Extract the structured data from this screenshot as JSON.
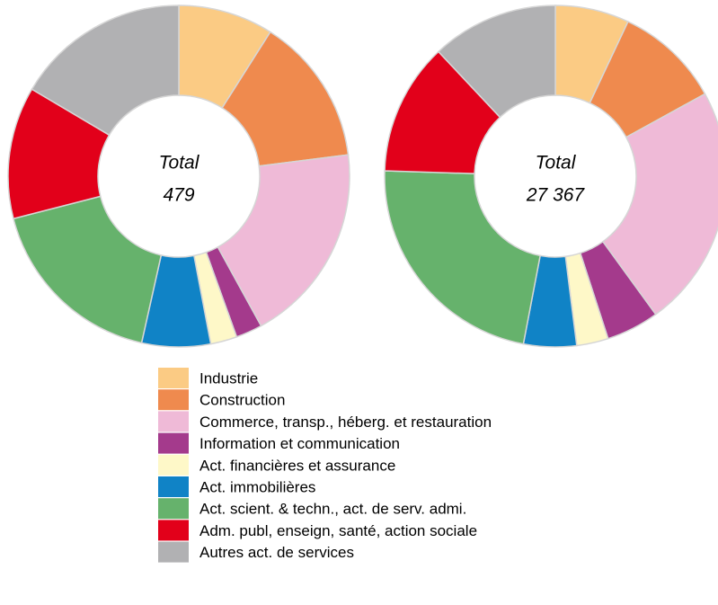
{
  "legend": {
    "labels": [
      "Industrie",
      "Construction",
      "Commerce, transp., héberg. et restauration",
      "Information et communication",
      "Act. financières et assurance",
      "Act. immobilières",
      "Act. scient. & techn., act. de serv. admi.",
      "Adm. publ, enseign, santé, action sociale",
      "Autres act. de services"
    ],
    "colors": [
      "#fbcb84",
      "#ef8a4e",
      "#efbad7",
      "#a43a8c",
      "#fef8c8",
      "#1083c6",
      "#66b26c",
      "#e2001a",
      "#b1b1b3"
    ]
  },
  "chart_data": [
    {
      "type": "pie",
      "center_label": "Total",
      "center_value": "479",
      "values": [
        9,
        14,
        19,
        2.5,
        2.5,
        6.5,
        17.5,
        12.5,
        16.5
      ]
    },
    {
      "type": "pie",
      "center_label": "Total",
      "center_value": "27 367",
      "values": [
        7,
        10,
        23,
        5,
        3,
        5,
        22.5,
        12.5,
        12
      ]
    }
  ]
}
